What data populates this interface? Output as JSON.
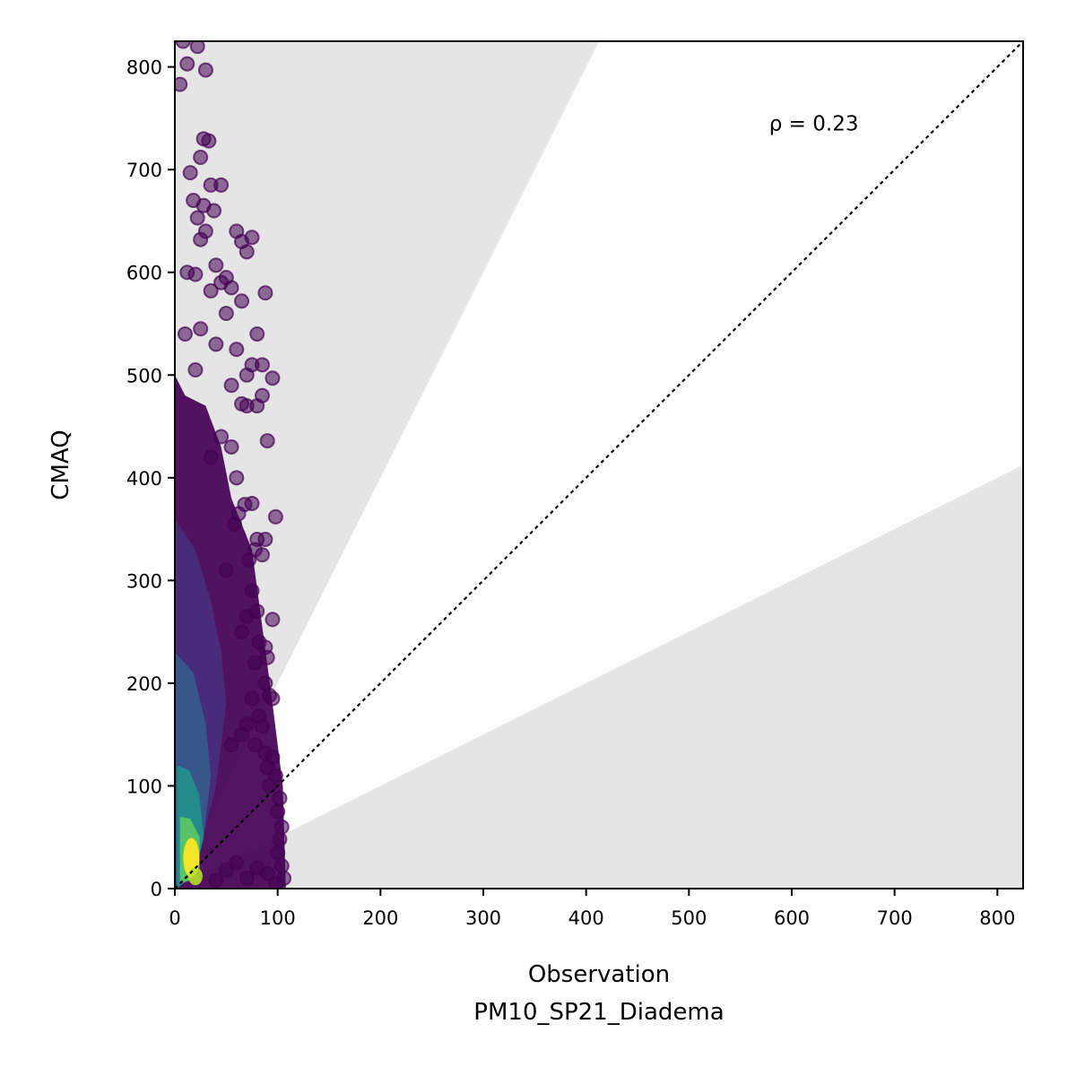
{
  "chart_data": {
    "type": "scatter",
    "title": "",
    "xlabel": "Observation",
    "xlabel_sub": "PM10_SP21_Diadema",
    "ylabel": "CMAQ",
    "xlim": [
      0,
      825
    ],
    "ylim": [
      0,
      825
    ],
    "xticks": [
      "0",
      "100",
      "200",
      "300",
      "400",
      "500",
      "600",
      "700",
      "800"
    ],
    "yticks": [
      "0",
      "100",
      "200",
      "300",
      "400",
      "500",
      "600",
      "700",
      "800"
    ],
    "reference_line": "y = x (dotted)",
    "shaded_regions": "outside factor-of-2 band (y > 2x and y < x/2)",
    "annotation": "ρ = 0.23",
    "colormap": "viridis (point density)",
    "grid": false,
    "colors": {
      "shade": "#e5e5e5",
      "low_density": "#440154",
      "high_density": "#fde725"
    },
    "points": [
      [
        8,
        825
      ],
      [
        22,
        820
      ],
      [
        12,
        803
      ],
      [
        5,
        783
      ],
      [
        30,
        797
      ],
      [
        28,
        730
      ],
      [
        33,
        728
      ],
      [
        15,
        697
      ],
      [
        25,
        712
      ],
      [
        35,
        685
      ],
      [
        45,
        685
      ],
      [
        18,
        670
      ],
      [
        28,
        665
      ],
      [
        22,
        653
      ],
      [
        38,
        660
      ],
      [
        30,
        640
      ],
      [
        25,
        632
      ],
      [
        60,
        640
      ],
      [
        65,
        630
      ],
      [
        75,
        634
      ],
      [
        70,
        620
      ],
      [
        40,
        607
      ],
      [
        50,
        595
      ],
      [
        12,
        600
      ],
      [
        20,
        598
      ],
      [
        35,
        582
      ],
      [
        45,
        590
      ],
      [
        55,
        585
      ],
      [
        88,
        580
      ],
      [
        65,
        572
      ],
      [
        50,
        560
      ],
      [
        80,
        540
      ],
      [
        10,
        540
      ],
      [
        25,
        545
      ],
      [
        40,
        530
      ],
      [
        60,
        525
      ],
      [
        75,
        510
      ],
      [
        70,
        500
      ],
      [
        85,
        510
      ],
      [
        95,
        497
      ],
      [
        20,
        505
      ],
      [
        55,
        490
      ],
      [
        85,
        480
      ],
      [
        80,
        470
      ],
      [
        70,
        470
      ],
      [
        65,
        472
      ],
      [
        90,
        436
      ],
      [
        55,
        430
      ],
      [
        45,
        440
      ],
      [
        35,
        420
      ],
      [
        60,
        400
      ],
      [
        75,
        375
      ],
      [
        68,
        374
      ],
      [
        98,
        362
      ],
      [
        62,
        365
      ],
      [
        58,
        355
      ],
      [
        80,
        340
      ],
      [
        88,
        340
      ],
      [
        78,
        330
      ],
      [
        85,
        325
      ],
      [
        72,
        320
      ],
      [
        50,
        310
      ],
      [
        75,
        290
      ],
      [
        80,
        270
      ],
      [
        70,
        265
      ],
      [
        95,
        262
      ],
      [
        65,
        250
      ],
      [
        82,
        240
      ],
      [
        88,
        235
      ],
      [
        78,
        220
      ],
      [
        90,
        225
      ],
      [
        88,
        200
      ],
      [
        92,
        188
      ],
      [
        95,
        185
      ],
      [
        82,
        168
      ],
      [
        75,
        185
      ],
      [
        85,
        158
      ],
      [
        70,
        160
      ],
      [
        65,
        150
      ],
      [
        55,
        140
      ],
      [
        78,
        140
      ],
      [
        88,
        132
      ],
      [
        95,
        128
      ],
      [
        90,
        118
      ],
      [
        98,
        110
      ],
      [
        92,
        100
      ],
      [
        102,
        88
      ],
      [
        100,
        75
      ],
      [
        104,
        60
      ],
      [
        102,
        48
      ],
      [
        100,
        35
      ],
      [
        104,
        22
      ],
      [
        106,
        10
      ],
      [
        98,
        5
      ],
      [
        90,
        15
      ],
      [
        80,
        20
      ],
      [
        70,
        10
      ],
      [
        60,
        25
      ],
      [
        50,
        18
      ],
      [
        40,
        8
      ]
    ]
  }
}
